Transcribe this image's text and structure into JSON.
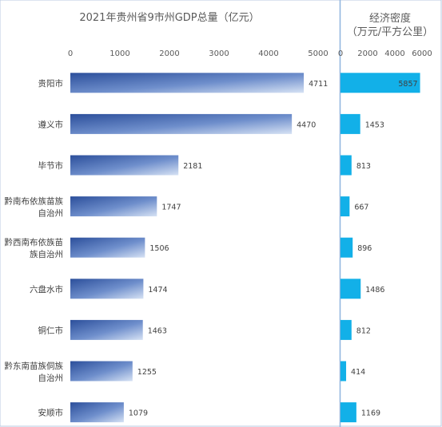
{
  "colors": {
    "left_bar_dark": "#2c4f9b",
    "left_bar_light": "#d6e2f4",
    "right_bar": "#12b0e8",
    "divider": "#8fb4de",
    "frame": "#b8c9e0"
  },
  "chart_data": [
    {
      "type": "bar",
      "orientation": "horizontal",
      "title": "2021年贵州省9市州GDP总量（亿元）",
      "categories": [
        "贵阳市",
        "遵义市",
        "毕节市",
        "黔南布依族苗族自治州",
        "黔西南布依族苗族自治州",
        "六盘水市",
        "铜仁市",
        "黔东南苗族侗族自治州",
        "安顺市"
      ],
      "category_lines": [
        [
          "贵阳市"
        ],
        [
          "遵义市"
        ],
        [
          "毕节市"
        ],
        [
          "黔南布依族苗族",
          "自治州"
        ],
        [
          "黔西南布依族苗",
          "族自治州"
        ],
        [
          "六盘水市"
        ],
        [
          "铜仁市"
        ],
        [
          "黔东南苗族侗族",
          "自治州"
        ],
        [
          "安顺市"
        ]
      ],
      "values": [
        4711,
        4470,
        2181,
        1747,
        1506,
        1474,
        1463,
        1255,
        1079
      ],
      "xlim": [
        0,
        5000
      ],
      "ticks": [
        0,
        1000,
        2000,
        3000,
        4000,
        5000
      ],
      "axis_position": "top",
      "grid": false
    },
    {
      "type": "bar",
      "orientation": "horizontal",
      "title_lines": [
        "经济密度",
        "（万元/平方公里）"
      ],
      "values": [
        5857,
        1453,
        813,
        667,
        896,
        1486,
        812,
        414,
        1169
      ],
      "xlim": [
        0,
        6000
      ],
      "ticks": [
        0,
        2000,
        4000,
        6000
      ],
      "axis_position": "top",
      "grid": false
    }
  ]
}
